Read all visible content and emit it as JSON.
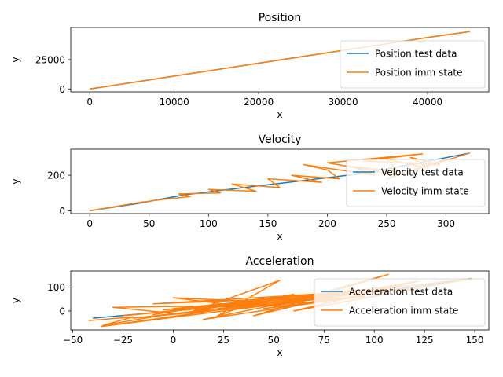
{
  "colors": {
    "test": "#1f77b4",
    "imm": "#ff7f0e"
  },
  "chart_data": [
    {
      "type": "line",
      "title": "Position",
      "xlabel": "x",
      "ylabel": "y",
      "xlim": [
        -2250,
        47250
      ],
      "ylim": [
        -2500,
        52500
      ],
      "xticks": [
        0,
        10000,
        20000,
        30000,
        40000
      ],
      "yticks": [
        0,
        25000
      ],
      "legend": "lower-right",
      "series": [
        {
          "name": "Position test data",
          "color_key": "test",
          "points": [
            [
              0,
              0
            ],
            [
              5000,
              5500
            ],
            [
              10000,
              11000
            ],
            [
              15000,
              16500
            ],
            [
              20000,
              22000
            ],
            [
              25000,
              27500
            ],
            [
              30000,
              33000
            ],
            [
              35000,
              38500
            ],
            [
              40000,
              44000
            ],
            [
              45000,
              49000
            ]
          ]
        },
        {
          "name": "Position imm state",
          "color_key": "imm",
          "points": [
            [
              0,
              0
            ],
            [
              5000,
              5500
            ],
            [
              10000,
              11000
            ],
            [
              15000,
              16500
            ],
            [
              20000,
              22000
            ],
            [
              25000,
              27500
            ],
            [
              30000,
              33000
            ],
            [
              35000,
              38500
            ],
            [
              40000,
              44000
            ],
            [
              45000,
              49000
            ]
          ]
        }
      ]
    },
    {
      "type": "line",
      "title": "Velocity",
      "xlabel": "x",
      "ylabel": "y",
      "xlim": [
        -16,
        336
      ],
      "ylim": [
        -16,
        346
      ],
      "xticks": [
        0,
        50,
        100,
        150,
        200,
        250,
        300
      ],
      "yticks": [
        0,
        200
      ],
      "legend": "right",
      "series": [
        {
          "name": "Velocity test data",
          "color_key": "test",
          "points": [
            [
              0,
              0
            ],
            [
              40,
              40
            ],
            [
              80,
              90
            ],
            [
              130,
              130
            ],
            [
              180,
              170
            ],
            [
              230,
              210
            ],
            [
              270,
              260
            ],
            [
              320,
              325
            ]
          ]
        },
        {
          "name": "Velocity imm state",
          "color_key": "imm",
          "points": [
            [
              0,
              0
            ],
            [
              20,
              22
            ],
            [
              45,
              50
            ],
            [
              40,
              45
            ],
            [
              60,
              62
            ],
            [
              85,
              80
            ],
            [
              75,
              95
            ],
            [
              110,
              100
            ],
            [
              100,
              120
            ],
            [
              140,
              110
            ],
            [
              120,
              150
            ],
            [
              160,
              130
            ],
            [
              150,
              180
            ],
            [
              195,
              160
            ],
            [
              170,
              200
            ],
            [
              210,
              180
            ],
            [
              200,
              230
            ],
            [
              180,
              260
            ],
            [
              240,
              200
            ],
            [
              220,
              250
            ],
            [
              260,
              220
            ],
            [
              250,
              290
            ],
            [
              285,
              240
            ],
            [
              270,
              300
            ],
            [
              295,
              260
            ],
            [
              230,
              280
            ],
            [
              280,
              320
            ],
            [
              200,
              270
            ],
            [
              260,
              200
            ],
            [
              300,
              290
            ],
            [
              250,
              180
            ],
            [
              320,
              325
            ]
          ]
        }
      ]
    },
    {
      "type": "line",
      "title": "Acceleration",
      "xlabel": "x",
      "ylabel": "y",
      "xlim": [
        -51,
        157
      ],
      "ylim": [
        -79,
        167
      ],
      "xticks": [
        -50,
        -25,
        0,
        25,
        50,
        75,
        100,
        125,
        150
      ],
      "yticks": [
        0,
        100
      ],
      "legend": "lower-right",
      "series": [
        {
          "name": "Acceleration test data",
          "color_key": "test",
          "points": [
            [
              -40,
              -30
            ],
            [
              0,
              0
            ],
            [
              40,
              30
            ],
            [
              80,
              60
            ],
            [
              120,
              100
            ],
            [
              148,
              135
            ]
          ]
        },
        {
          "name": "Acceleration imm state",
          "color_key": "imm",
          "points": [
            [
              -42,
              -40
            ],
            [
              -20,
              -25
            ],
            [
              -35,
              -60
            ],
            [
              0,
              -10
            ],
            [
              -30,
              15
            ],
            [
              10,
              20
            ],
            [
              -10,
              -15
            ],
            [
              25,
              30
            ],
            [
              0,
              55
            ],
            [
              40,
              40
            ],
            [
              20,
              -30
            ],
            [
              53,
              128
            ],
            [
              10,
              0
            ],
            [
              60,
              70
            ],
            [
              30,
              10
            ],
            [
              80,
              60
            ],
            [
              -10,
              30
            ],
            [
              90,
              80
            ],
            [
              40,
              -20
            ],
            [
              107,
              153
            ],
            [
              50,
              20
            ],
            [
              122,
              125
            ],
            [
              60,
              0
            ],
            [
              148,
              135
            ],
            [
              70,
              60
            ],
            [
              -36,
              -65
            ],
            [
              100,
              80
            ],
            [
              0,
              10
            ],
            [
              110,
              100
            ],
            [
              30,
              40
            ],
            [
              85,
              75
            ],
            [
              -25,
              -20
            ],
            [
              120,
              95
            ],
            [
              45,
              10
            ],
            [
              95,
              60
            ],
            [
              -5,
              5
            ],
            [
              75,
              40
            ],
            [
              15,
              -35
            ],
            [
              65,
              50
            ],
            [
              -20,
              -30
            ],
            [
              55,
              30
            ]
          ]
        }
      ]
    }
  ]
}
